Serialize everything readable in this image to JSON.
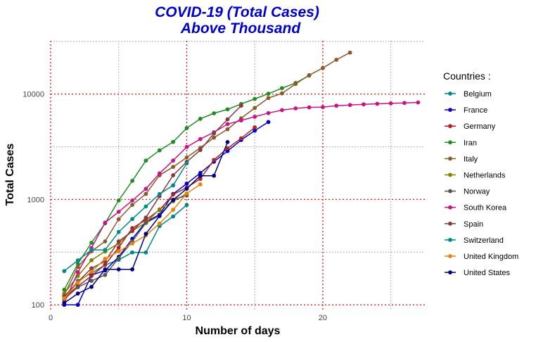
{
  "chart_data": {
    "type": "line",
    "title_lines": [
      "COVID-19 (Total Cases)",
      "Above Thousand"
    ],
    "xlabel": "Number of days",
    "ylabel": "Total Cases",
    "x_scale": "linear",
    "y_scale": "log10",
    "xlim": [
      0,
      27.5
    ],
    "ylim": [
      90,
      32000
    ],
    "x_ticks": [
      0,
      10,
      20
    ],
    "y_ticks": [
      100,
      1000,
      10000
    ],
    "x_tick_labels": [
      "0",
      "10",
      "20"
    ],
    "y_tick_labels": [
      "100",
      "1000",
      "10000"
    ],
    "grid": true,
    "legend_title": "Countries :",
    "legend_position": "right",
    "series": [
      {
        "name": "Belgium",
        "color": "#00868b",
        "x": [
          1,
          2,
          3,
          4,
          5,
          6,
          7,
          8,
          9,
          10
        ],
        "y": [
          109,
          169,
          200,
          239,
          267,
          314,
          314,
          559,
          689,
          886
        ]
      },
      {
        "name": "France",
        "color": "#0000cd",
        "x": [
          1,
          2,
          3,
          4,
          5,
          6,
          7,
          8,
          9,
          10,
          11,
          12,
          13,
          14,
          15,
          16
        ],
        "y": [
          100,
          100,
          191,
          212,
          285,
          423,
          613,
          716,
          1126,
          1412,
          1784,
          2281,
          2876,
          3661,
          4499,
          5423
        ]
      },
      {
        "name": "Germany",
        "color": "#b22222",
        "x": [
          1,
          2,
          3,
          4,
          5,
          6,
          7,
          8,
          9,
          10,
          11,
          12,
          13,
          14,
          15
        ],
        "y": [
          117,
          150,
          188,
          240,
          349,
          534,
          639,
          795,
          1112,
          1296,
          1567,
          2369,
          3062,
          3795,
          4838
        ]
      },
      {
        "name": "Iran",
        "color": "#228b22",
        "x": [
          1,
          2,
          3,
          4,
          5,
          6,
          7,
          8,
          9,
          10,
          11,
          12,
          13,
          14,
          15,
          16,
          17,
          18,
          19
        ],
        "y": [
          139,
          245,
          388,
          593,
          978,
          1501,
          2336,
          2922,
          3513,
          4747,
          5823,
          6566,
          7161,
          8042,
          9000,
          10075,
          11364,
          12729,
          14991
        ]
      },
      {
        "name": "Italy",
        "color": "#8b5a2b",
        "x": [
          1,
          2,
          3,
          4,
          5,
          6,
          7,
          8,
          9,
          10,
          11,
          12,
          13,
          14,
          15,
          16,
          17,
          18,
          19,
          20,
          21,
          22
        ],
        "y": [
          124,
          229,
          322,
          400,
          650,
          888,
          1128,
          1694,
          2036,
          2502,
          3089,
          3858,
          4636,
          5883,
          7375,
          9172,
          10149,
          12462,
          15113,
          17660,
          21157,
          24747
        ]
      },
      {
        "name": "Netherlands",
        "color": "#808000",
        "x": [
          1,
          2,
          3,
          4,
          5,
          6,
          7,
          8,
          9,
          10
        ],
        "y": [
          128,
          188,
          265,
          321,
          382,
          503,
          603,
          804,
          959,
          1135
        ]
      },
      {
        "name": "Norway",
        "color": "#555555",
        "x": [
          1,
          2,
          3,
          4,
          5,
          6,
          7,
          8,
          9,
          10
        ],
        "y": [
          113,
          147,
          169,
          192,
          277,
          400,
          598,
          702,
          996,
          1090
        ]
      },
      {
        "name": "South Korea",
        "color": "#c71585",
        "x": [
          1,
          2,
          3,
          4,
          5,
          6,
          7,
          8,
          9,
          10,
          11,
          12,
          13,
          14,
          15,
          16,
          17,
          18,
          19,
          20,
          21,
          22,
          23,
          24,
          25,
          26,
          27
        ],
        "y": [
          104,
          204,
          346,
          602,
          763,
          977,
          1261,
          1766,
          2337,
          3150,
          3736,
          4335,
          5186,
          5621,
          6088,
          6593,
          7041,
          7314,
          7478,
          7513,
          7755,
          7869,
          7979,
          8086,
          8162,
          8236,
          8320
        ]
      },
      {
        "name": "Spain",
        "color": "#8b3a3a",
        "x": [
          1,
          2,
          3,
          4,
          5,
          6,
          7,
          8,
          9,
          10,
          11,
          12,
          13,
          14
        ],
        "y": [
          120,
          165,
          222,
          259,
          400,
          500,
          673,
          1073,
          1695,
          2277,
          2944,
          4231,
          5753,
          7753
        ]
      },
      {
        "name": "Switzerland",
        "color": "#008b8b",
        "x": [
          1,
          2,
          3,
          4,
          5,
          6,
          7,
          8,
          9,
          10
        ],
        "y": [
          209,
          264,
          332,
          332,
          491,
          652,
          858,
          1125,
          1359,
          2200
        ]
      },
      {
        "name": "United Kingdom",
        "color": "#e8820c",
        "x": [
          1,
          2,
          3,
          4,
          5,
          6,
          7,
          8,
          9,
          10,
          11
        ],
        "y": [
          115,
          163,
          206,
          273,
          321,
          382,
          456,
          590,
          798,
          1140,
          1391
        ]
      },
      {
        "name": "United States",
        "color": "#000080",
        "x": [
          1,
          2,
          3,
          4,
          5,
          6,
          7,
          8,
          9,
          10,
          11,
          12,
          13
        ],
        "y": [
          104,
          128,
          148,
          217,
          217,
          217,
          472,
          696,
          987,
          1264,
          1678,
          1678,
          3503
        ]
      }
    ]
  }
}
